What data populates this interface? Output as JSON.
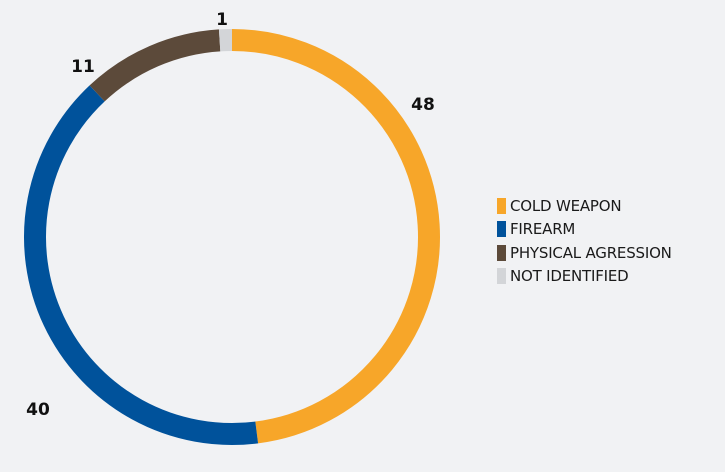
{
  "chart_data": {
    "type": "pie",
    "style": "donut",
    "categories": [
      "COLD WEAPON",
      "FIREARM",
      "PHYSICAL AGRESSION",
      "NOT IDENTIFIED"
    ],
    "values": [
      48,
      40,
      11,
      1
    ],
    "data_labels": [
      "48",
      "40",
      "11",
      "1"
    ],
    "colors": [
      "#f7a629",
      "#00529b",
      "#5c4a3a",
      "#d3d5d8"
    ],
    "legend": {
      "placement": "right",
      "entries": [
        "COLD WEAPON",
        "FIREARM",
        "PHYSICAL AGRESSION",
        "NOT IDENTIFIED"
      ]
    },
    "title": "",
    "start": "top",
    "direction": "clockwise"
  }
}
